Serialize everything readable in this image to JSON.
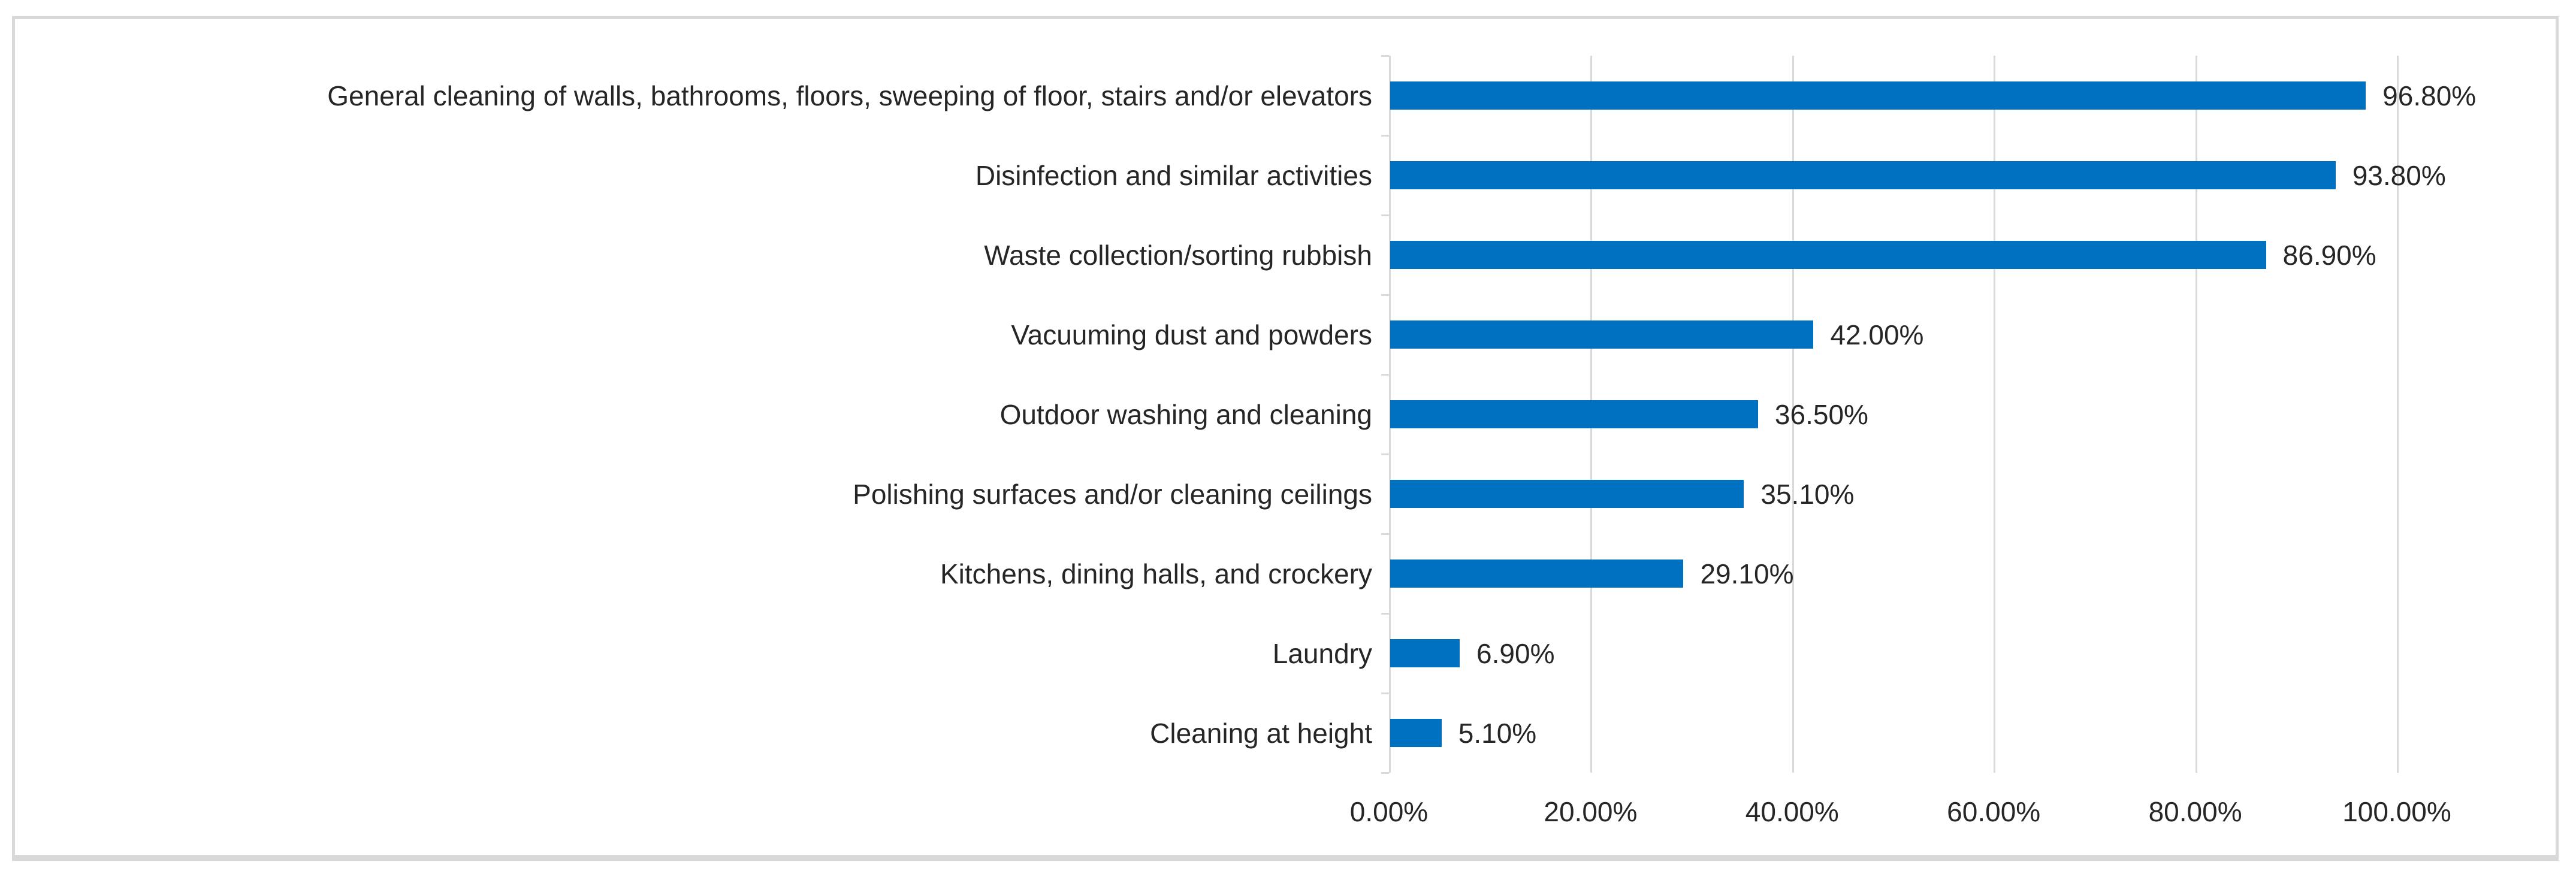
{
  "chart_data": {
    "type": "bar",
    "orientation": "horizontal",
    "title": "",
    "categories": [
      "General cleaning of walls, bathrooms, floors, sweeping of floor, stairs and/or elevators",
      "Disinfection and similar activities",
      "Waste collection/sorting rubbish",
      "Vacuuming dust and powders",
      "Outdoor washing and cleaning",
      "Polishing surfaces and/or cleaning ceilings",
      "Kitchens, dining halls, and crockery",
      "Laundry",
      "Cleaning at height"
    ],
    "values": [
      96.8,
      93.8,
      86.9,
      42.0,
      36.5,
      35.1,
      29.1,
      6.9,
      5.1
    ],
    "value_labels": [
      "96.80%",
      "93.80%",
      "86.90%",
      "42.00%",
      "36.50%",
      "35.10%",
      "29.10%",
      "6.90%",
      "5.10%"
    ],
    "x_ticks": [
      0,
      20,
      40,
      60,
      80,
      100
    ],
    "x_tick_labels": [
      "0.00%",
      "20.00%",
      "40.00%",
      "60.00%",
      "80.00%",
      "100.00%"
    ],
    "xlim": [
      0,
      100
    ],
    "grid": true,
    "legend": false,
    "data_labels": true,
    "bar_color": "#0070C0",
    "gridline_color": "#D9D9D9",
    "axis_color": "#D9D9D9",
    "border_color": "#D9D9D9",
    "text_color": "#262626"
  }
}
